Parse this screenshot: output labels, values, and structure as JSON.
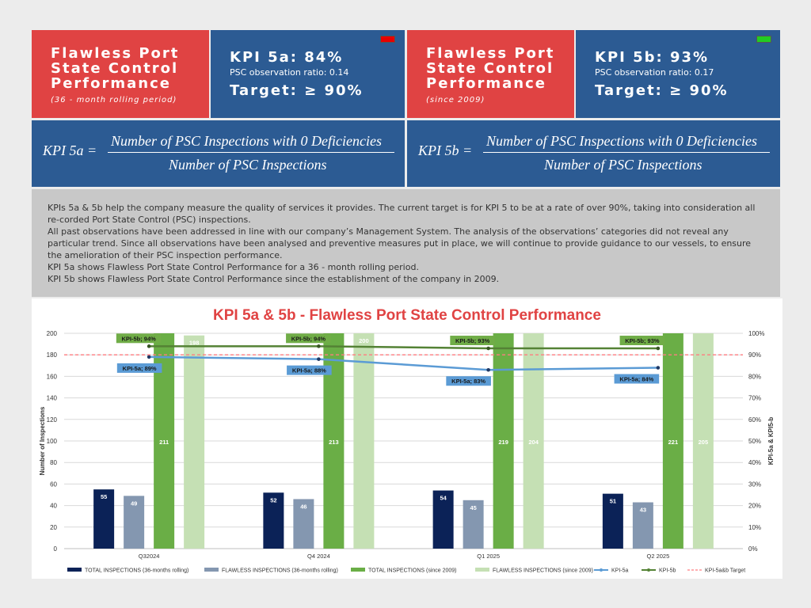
{
  "panel_5a": {
    "title": [
      "Flawless Port",
      "State Control",
      "Performance"
    ],
    "period": "(36 - month rolling period)",
    "kpi": "KPI 5a: 84%",
    "ratio": "PSC observation ratio: 0.14",
    "target": "Target: ≥ 90%",
    "status_color": "#e80000",
    "formula_lhs": "KPI 5a =",
    "numerator": "Number of PSC Inspections with 0 Deficiencies",
    "denominator": "Number of PSC Inspections"
  },
  "panel_5b": {
    "title": [
      "Flawless Port",
      "State Control",
      "Performance"
    ],
    "period": "(since 2009)",
    "kpi": "KPI 5b: 93%",
    "ratio": "PSC observation ratio: 0.17",
    "target": "Target: ≥ 90%",
    "status_color": "#22cc22",
    "formula_lhs": "KPI 5b =",
    "numerator": "Number of PSC Inspections with 0 Deficiencies",
    "denominator": "Number of PSC Inspections"
  },
  "description": [
    "KPIs 5a & 5b help the company measure the quality of services it provides. The current target is for KPI 5 to be at a rate of over 90%, taking into consideration all re-corded Port State Control (PSC) inspections.",
    "All past observations have been addressed in line with our company’s Management System. The analysis of the observations’ categories did not reveal any particular trend. Since all observations have been analysed and preventive measures put in place, we will continue to provide guidance to our vessels, to ensure the amelioration of their PSC inspection performance.",
    "KPI 5a shows Flawless Port State Control Performance for a 36 - month rolling period.",
    "KPI 5b shows Flawless Port State Control Performance since the establishment of the company in 2009."
  ],
  "chart_data": {
    "type": "bar",
    "title": "KPI 5a & 5b - Flawless Port State Control Performance",
    "categories": [
      "Q32024",
      "Q4 2024",
      "Q1 2025",
      "Q2 2025"
    ],
    "ylabel": "Number of Inspections",
    "y2label": "KPI-5a & KPI5-b",
    "ylim": [
      0,
      200
    ],
    "y2lim": [
      0,
      100
    ],
    "yticks": [
      "0",
      "20",
      "40",
      "60",
      "80",
      "100",
      "120",
      "140",
      "160",
      "180",
      "200"
    ],
    "y2ticks": [
      "0%",
      "10%",
      "20%",
      "30%",
      "40%",
      "50%",
      "60%",
      "70%",
      "80%",
      "90%",
      "100%"
    ],
    "grid": true,
    "legend_placement": "bottom",
    "bar_series": [
      {
        "name": "TOTAL INSPECTIONS (36-months rolling)",
        "color": "#0b2257",
        "label_color": "#ffffff",
        "values": [
          55,
          52,
          54,
          51
        ]
      },
      {
        "name": "FLAWLESS INSPECTIONS (36-months rolling)",
        "color": "#8497b0",
        "label_color": "#ffffff",
        "values": [
          49,
          46,
          45,
          43
        ]
      },
      {
        "name": "TOTAL INSPECTIONS (since 2009)",
        "color": "#6aae46",
        "label_color": "#ffffff",
        "values": [
          211,
          213,
          219,
          221
        ]
      },
      {
        "name": "FLAWLESS INSPECTIONS (since 2009)",
        "color": "#c5e0b4",
        "label_color": "#ffffff",
        "values": [
          198,
          200,
          204,
          205
        ]
      }
    ],
    "line_series": [
      {
        "name": "KPI-5a",
        "color": "#5b9bd5",
        "values": [
          89,
          88,
          83,
          84
        ],
        "labels": [
          "KPI-5a; 89%",
          "KPI-5a; 88%",
          "KPI-5a; 83%",
          "KPI-5a; 84%"
        ],
        "label_bg": "#5b9bd5"
      },
      {
        "name": "KPI-5b",
        "color": "#548235",
        "values": [
          94,
          94,
          93,
          93
        ],
        "labels": [
          "KPI-5b; 94%",
          "KPI-5b; 94%",
          "KPI-5b; 93%",
          "KPI-5b; 93%"
        ],
        "label_bg": "#70ad47"
      },
      {
        "name": "KPI-5a&b Target",
        "color": "#ff7c80",
        "dashed": true,
        "values": [
          90,
          90,
          90,
          90
        ]
      }
    ]
  }
}
